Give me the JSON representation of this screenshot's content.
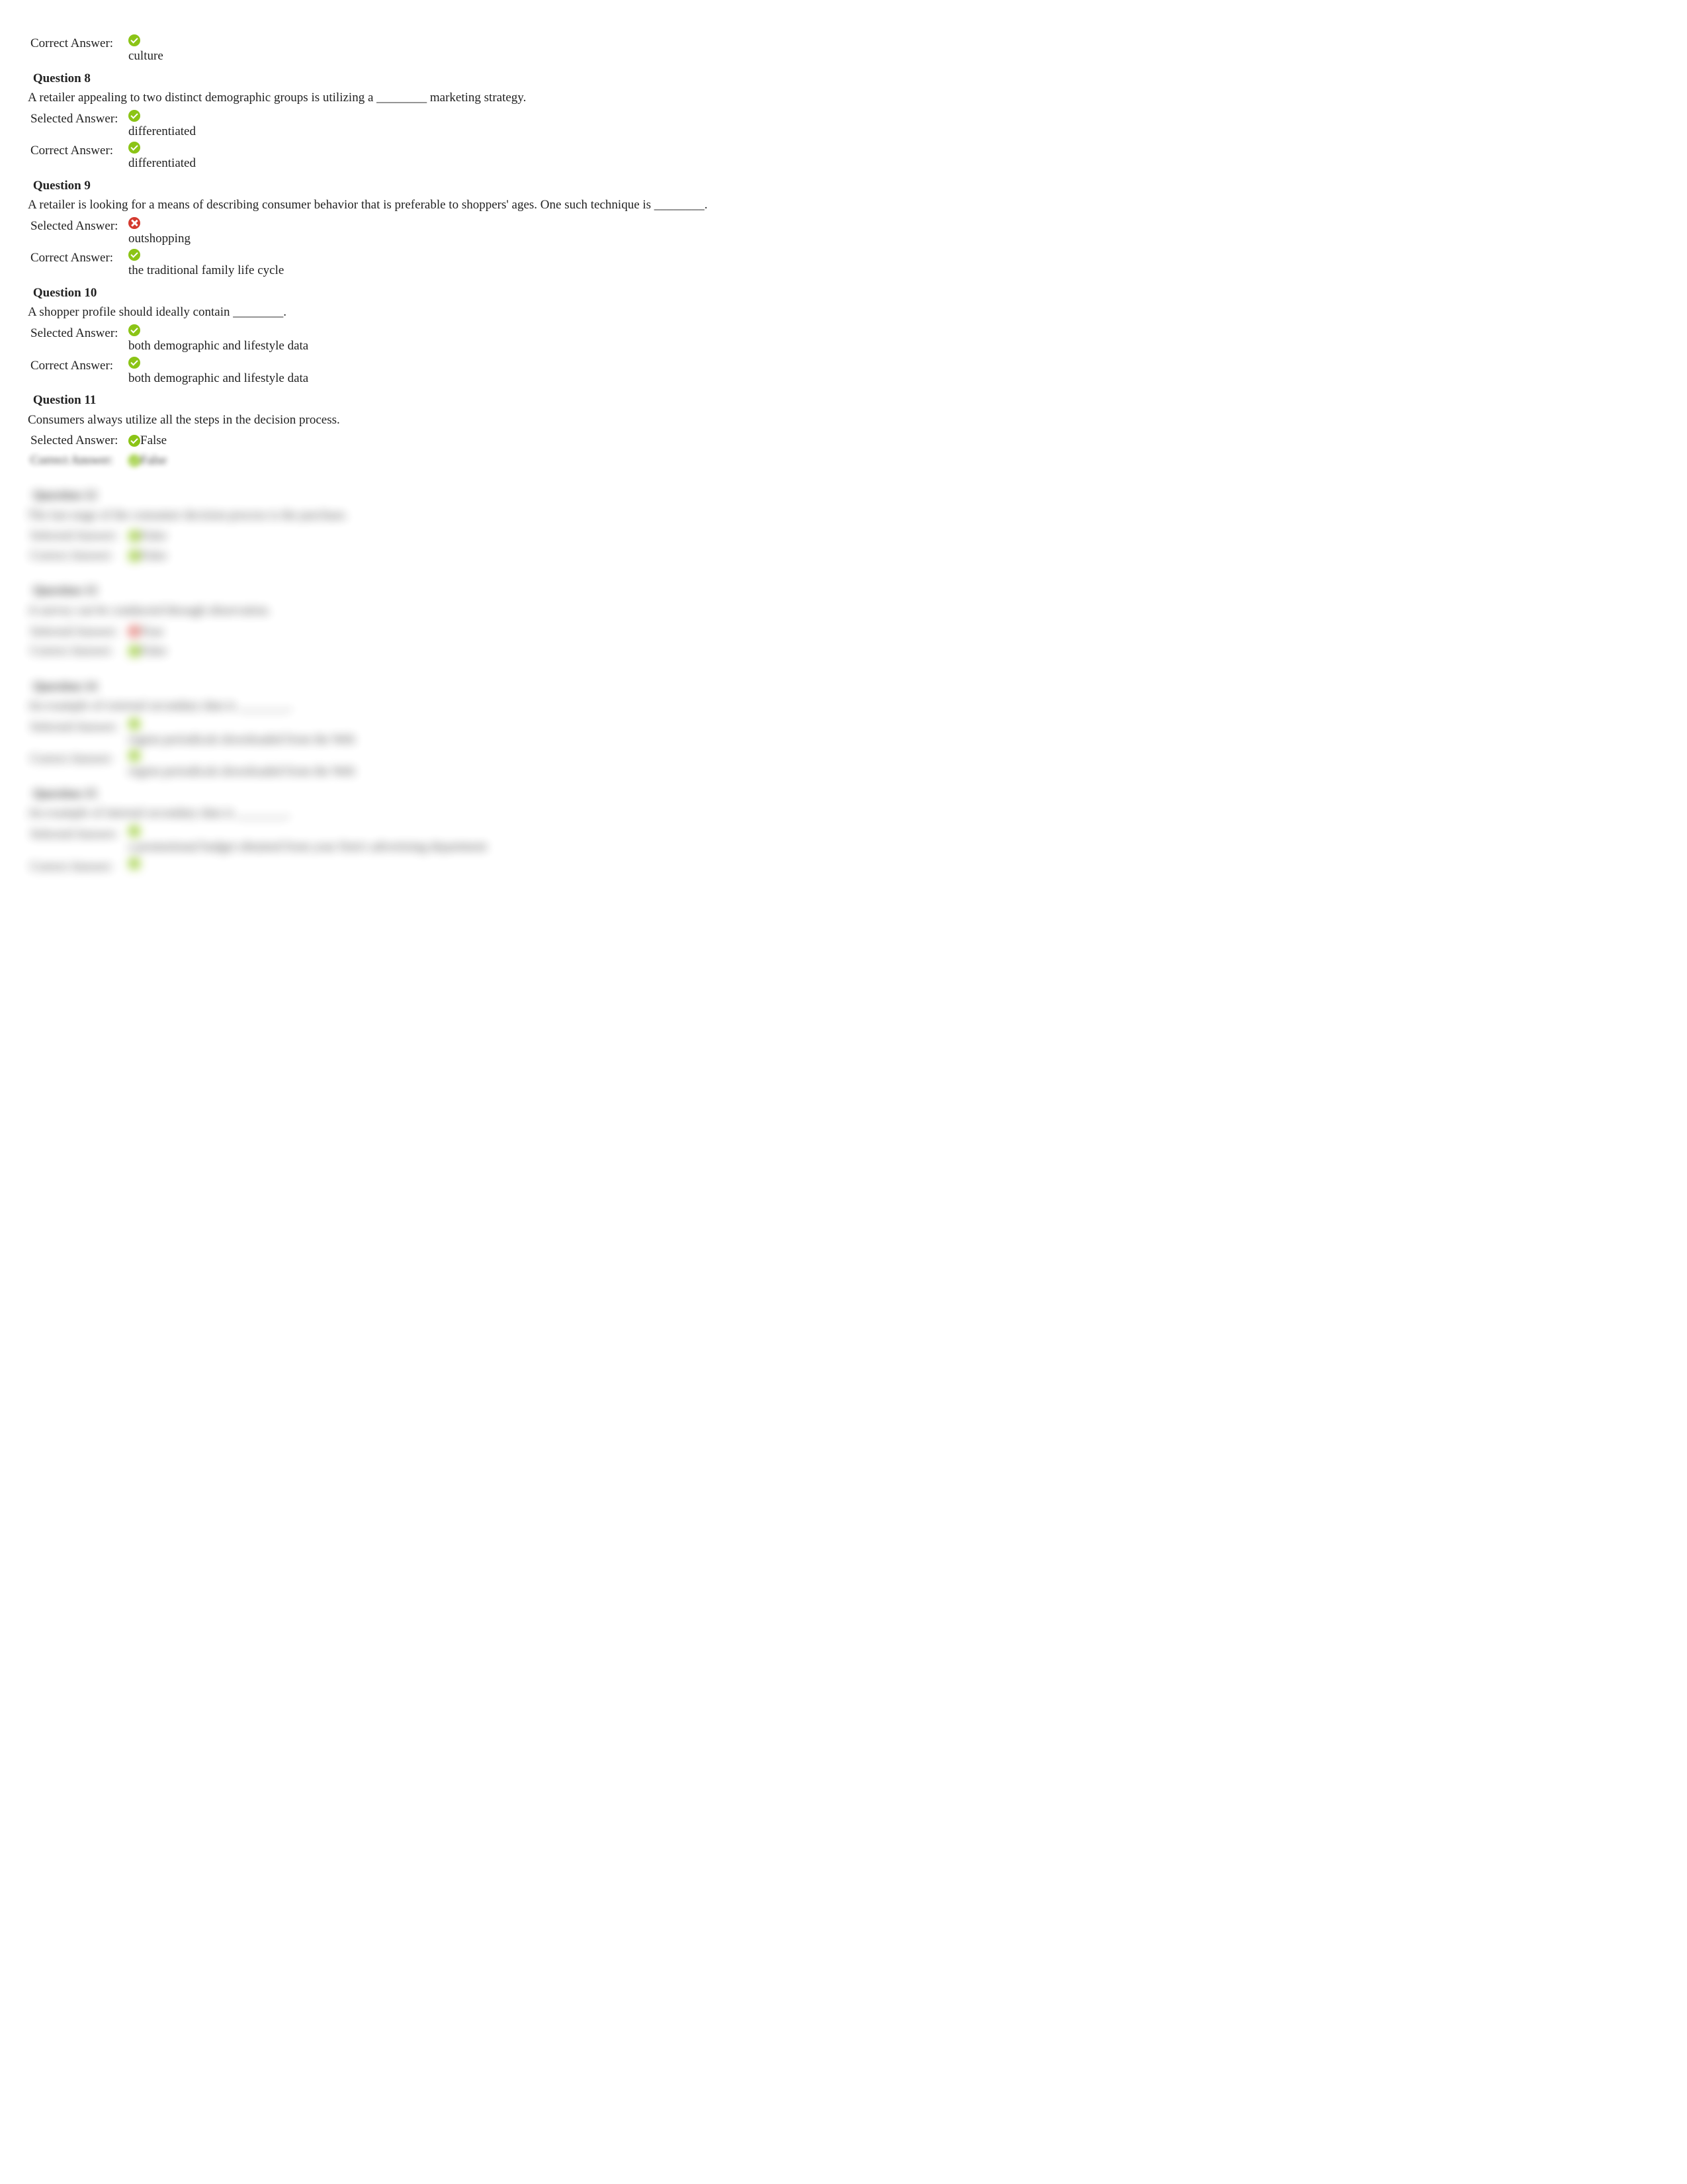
{
  "labels": {
    "selected": "Selected Answer:",
    "correct": "Correct Answer:"
  },
  "q7_trail": {
    "correct": {
      "status": "check",
      "value": "culture"
    }
  },
  "q8": {
    "header": "Question 8",
    "text": "A retailer appealing to two distinct demographic groups is utilizing a ________ marketing strategy.",
    "selected": {
      "status": "check",
      "value": "differentiated"
    },
    "correct": {
      "status": "check",
      "value": "differentiated"
    }
  },
  "q9": {
    "header": "Question 9",
    "text": "A retailer is looking for a means of describing consumer behavior that is preferable to shoppers' ages. One such technique is ________.",
    "selected": {
      "status": "cross",
      "value": "outshopping"
    },
    "correct": {
      "status": "check",
      "value": "the traditional family life cycle"
    }
  },
  "q10": {
    "header": "Question 10",
    "text": "A shopper profile should ideally contain ________.",
    "selected": {
      "status": "check",
      "value": "both demographic and lifestyle data"
    },
    "correct": {
      "status": "check",
      "value": "both demographic and lifestyle data"
    }
  },
  "q11": {
    "header": "Question 11",
    "text": "Consumers always utilize all the steps in the decision process.",
    "selected": {
      "status": "check",
      "value": "False"
    },
    "correct": {
      "status": "check",
      "value": "False"
    }
  },
  "q12": {
    "header": "Question 12",
    "text": "The last stage of the consumer decision process is the purchase.",
    "selected": {
      "status": "check",
      "value": "False"
    },
    "correct": {
      "status": "check",
      "value": "False"
    }
  },
  "q13": {
    "header": "Question 13",
    "text": "A survey can be conducted through observation.",
    "selected": {
      "status": "cross",
      "value": "True"
    },
    "correct": {
      "status": "check",
      "value": "False"
    }
  },
  "q14": {
    "header": "Question 14",
    "text": "An example of external secondary data is ________.",
    "selected": {
      "status": "check",
      "value": "region periodicals downloaded from the Web"
    },
    "correct": {
      "status": "check",
      "value": "region periodicals downloaded from the Web"
    }
  },
  "q15": {
    "header": "Question 15",
    "text": "An example of internal secondary data is ________.",
    "selected": {
      "status": "check",
      "value": "a promotional budget obtained from your firm's advertising department"
    },
    "correct": {
      "status": "check",
      "value": ""
    }
  }
}
